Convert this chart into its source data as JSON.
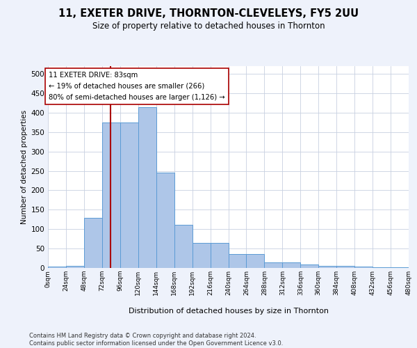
{
  "title": "11, EXETER DRIVE, THORNTON-CLEVELEYS, FY5 2UU",
  "subtitle": "Size of property relative to detached houses in Thornton",
  "xlabel": "Distribution of detached houses by size in Thornton",
  "ylabel": "Number of detached properties",
  "bar_values": [
    4,
    5,
    130,
    375,
    375,
    415,
    246,
    111,
    65,
    65,
    35,
    35,
    15,
    15,
    9,
    6,
    5,
    3,
    2,
    1
  ],
  "bar_edges": [
    0,
    24,
    48,
    72,
    96,
    120,
    144,
    168,
    192,
    216,
    240,
    264,
    288,
    312,
    336,
    360,
    384,
    408,
    432,
    456,
    480
  ],
  "bar_color": "#aec6e8",
  "bar_edgecolor": "#5b9bd5",
  "vline_x": 83,
  "vline_color": "#aa0000",
  "annotation_text": "11 EXETER DRIVE: 83sqm\n← 19% of detached houses are smaller (266)\n80% of semi-detached houses are larger (1,126) →",
  "annotation_box_color": "#ffffff",
  "annotation_box_edgecolor": "#aa0000",
  "ylim": [
    0,
    520
  ],
  "yticks": [
    0,
    50,
    100,
    150,
    200,
    250,
    300,
    350,
    400,
    450,
    500
  ],
  "xtick_labels": [
    "0sqm",
    "24sqm",
    "48sqm",
    "72sqm",
    "96sqm",
    "120sqm",
    "144sqm",
    "168sqm",
    "192sqm",
    "216sqm",
    "240sqm",
    "264sqm",
    "288sqm",
    "312sqm",
    "336sqm",
    "360sqm",
    "384sqm",
    "408sqm",
    "432sqm",
    "456sqm",
    "480sqm"
  ],
  "footer_text": "Contains HM Land Registry data © Crown copyright and database right 2024.\nContains public sector information licensed under the Open Government Licence v3.0.",
  "bg_color": "#eef2fb",
  "plot_bg_color": "#ffffff",
  "grid_color": "#c8d0e0"
}
